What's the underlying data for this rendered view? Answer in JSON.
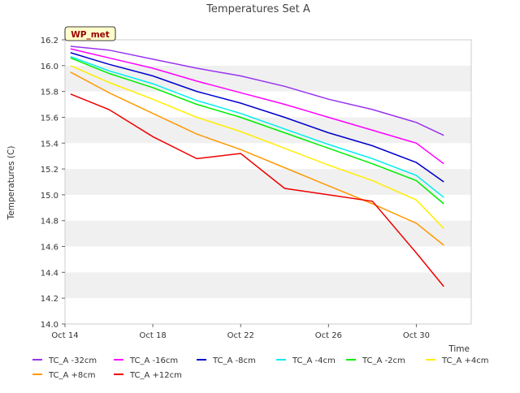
{
  "chart_data": {
    "type": "line",
    "title": "Temperatures Set A",
    "xlabel": "Time",
    "ylabel": "Temperatures (C)",
    "x_range": [
      "2020-10-14",
      "2020-11-01T12:00"
    ],
    "ylim": [
      14.0,
      16.2
    ],
    "y_ticks": [
      14.0,
      14.2,
      14.4,
      14.6,
      14.8,
      15.0,
      15.2,
      15.4,
      15.6,
      15.8,
      16.0,
      16.2
    ],
    "x_ticks": [
      {
        "label": "Oct 14",
        "date": "2020-10-14"
      },
      {
        "label": "Oct 18",
        "date": "2020-10-18"
      },
      {
        "label": "Oct 22",
        "date": "2020-10-22"
      },
      {
        "label": "Oct 26",
        "date": "2020-10-26"
      },
      {
        "label": "Oct 30",
        "date": "2020-10-30"
      }
    ],
    "grid": "alternating horizontal bands",
    "legend_position": "bottom",
    "annotation": "WP_met",
    "series": [
      {
        "name": "TC_A -32cm",
        "color": "#9933ee",
        "x": [
          "2020-10-14T06:00",
          "2020-10-16",
          "2020-10-18",
          "2020-10-20",
          "2020-10-22",
          "2020-10-24",
          "2020-10-26",
          "2020-10-28",
          "2020-10-30",
          "2020-10-31T06:00"
        ],
        "y": [
          16.15,
          16.12,
          16.05,
          15.98,
          15.92,
          15.84,
          15.74,
          15.66,
          15.56,
          15.46
        ]
      },
      {
        "name": "TC_A -16cm",
        "color": "#ff00ff",
        "x": [
          "2020-10-14T06:00",
          "2020-10-16",
          "2020-10-18",
          "2020-10-20",
          "2020-10-22",
          "2020-10-24",
          "2020-10-26",
          "2020-10-28",
          "2020-10-30",
          "2020-10-31T06:00"
        ],
        "y": [
          16.13,
          16.06,
          15.98,
          15.88,
          15.79,
          15.7,
          15.6,
          15.5,
          15.4,
          15.24
        ]
      },
      {
        "name": "TC_A -8cm",
        "color": "#0000cc",
        "x": [
          "2020-10-14T06:00",
          "2020-10-16",
          "2020-10-18",
          "2020-10-20",
          "2020-10-22",
          "2020-10-24",
          "2020-10-26",
          "2020-10-28",
          "2020-10-30",
          "2020-10-31T06:00"
        ],
        "y": [
          16.1,
          16.01,
          15.92,
          15.8,
          15.71,
          15.6,
          15.48,
          15.38,
          15.25,
          15.1
        ]
      },
      {
        "name": "TC_A -4cm",
        "color": "#00eeee",
        "x": [
          "2020-10-14T06:00",
          "2020-10-16",
          "2020-10-18",
          "2020-10-20",
          "2020-10-22",
          "2020-10-24",
          "2020-10-26",
          "2020-10-28",
          "2020-10-30",
          "2020-10-31T06:00"
        ],
        "y": [
          16.07,
          15.96,
          15.86,
          15.73,
          15.63,
          15.51,
          15.39,
          15.28,
          15.15,
          14.98
        ]
      },
      {
        "name": "TC_A -2cm",
        "color": "#00ee00",
        "x": [
          "2020-10-14T06:00",
          "2020-10-16",
          "2020-10-18",
          "2020-10-20",
          "2020-10-22",
          "2020-10-24",
          "2020-10-26",
          "2020-10-28",
          "2020-10-30",
          "2020-10-31T06:00"
        ],
        "y": [
          16.06,
          15.94,
          15.83,
          15.7,
          15.6,
          15.48,
          15.36,
          15.24,
          15.11,
          14.93
        ]
      },
      {
        "name": "TC_A +4cm",
        "color": "#ffee00",
        "x": [
          "2020-10-14T06:00",
          "2020-10-16",
          "2020-10-18",
          "2020-10-20",
          "2020-10-22",
          "2020-10-24",
          "2020-10-26",
          "2020-10-28",
          "2020-10-30",
          "2020-10-31T06:00"
        ],
        "y": [
          16.0,
          15.87,
          15.74,
          15.6,
          15.49,
          15.36,
          15.23,
          15.11,
          14.96,
          14.74
        ]
      },
      {
        "name": "TC_A +8cm",
        "color": "#ff9900",
        "x": [
          "2020-10-14T06:00",
          "2020-10-16",
          "2020-10-18",
          "2020-10-20",
          "2020-10-22",
          "2020-10-24",
          "2020-10-26",
          "2020-10-28",
          "2020-10-30",
          "2020-10-31T06:00"
        ],
        "y": [
          15.95,
          15.79,
          15.63,
          15.47,
          15.35,
          15.21,
          15.07,
          14.93,
          14.78,
          14.61
        ]
      },
      {
        "name": "TC_A +12cm",
        "color": "#ee0000",
        "x": [
          "2020-10-14T06:00",
          "2020-10-16",
          "2020-10-18",
          "2020-10-20",
          "2020-10-22",
          "2020-10-24",
          "2020-10-26",
          "2020-10-28",
          "2020-10-30",
          "2020-10-31T06:00"
        ],
        "y": [
          15.78,
          15.66,
          15.45,
          15.28,
          15.32,
          15.05,
          15.0,
          14.95,
          14.55,
          14.29
        ]
      }
    ]
  }
}
